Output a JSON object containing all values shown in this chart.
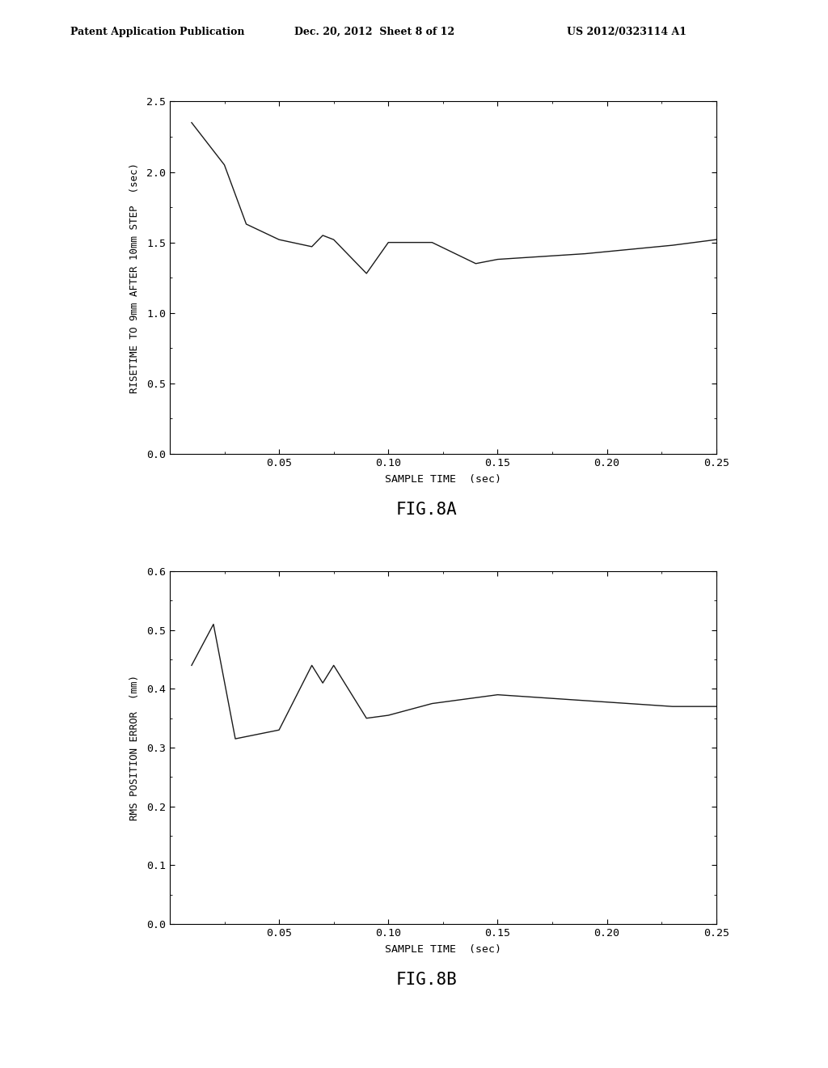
{
  "fig8a": {
    "x": [
      0.01,
      0.025,
      0.035,
      0.05,
      0.065,
      0.07,
      0.075,
      0.09,
      0.1,
      0.12,
      0.14,
      0.15,
      0.17,
      0.19,
      0.21,
      0.23,
      0.25
    ],
    "y": [
      2.35,
      2.05,
      1.63,
      1.52,
      1.47,
      1.55,
      1.52,
      1.28,
      1.5,
      1.5,
      1.35,
      1.38,
      1.4,
      1.42,
      1.45,
      1.48,
      1.52
    ],
    "xlabel": "SAMPLE TIME  (sec)",
    "ylabel": "RISETIME TO 9mm AFTER 10mm STEP  (sec)",
    "xlim": [
      0.0,
      0.25
    ],
    "ylim": [
      0.0,
      2.5
    ],
    "xticks": [
      0.05,
      0.1,
      0.15,
      0.2,
      0.25
    ],
    "yticks": [
      0.0,
      0.5,
      1.0,
      1.5,
      2.0,
      2.5
    ],
    "fig_label": "FIG.8A"
  },
  "fig8b": {
    "x": [
      0.01,
      0.02,
      0.03,
      0.05,
      0.065,
      0.07,
      0.075,
      0.09,
      0.1,
      0.12,
      0.14,
      0.15,
      0.17,
      0.19,
      0.21,
      0.23,
      0.25
    ],
    "y": [
      0.44,
      0.51,
      0.315,
      0.33,
      0.44,
      0.41,
      0.44,
      0.35,
      0.355,
      0.375,
      0.385,
      0.39,
      0.385,
      0.38,
      0.375,
      0.37,
      0.37
    ],
    "xlabel": "SAMPLE TIME  (sec)",
    "ylabel": "RMS POSITION ERROR  (mm)",
    "xlim": [
      0.0,
      0.25
    ],
    "ylim": [
      0.0,
      0.6
    ],
    "xticks": [
      0.05,
      0.1,
      0.15,
      0.2,
      0.25
    ],
    "yticks": [
      0.0,
      0.1,
      0.2,
      0.3,
      0.4,
      0.5,
      0.6
    ],
    "fig_label": "FIG.8B"
  },
  "header_left": "Patent Application Publication",
  "header_mid": "Dec. 20, 2012  Sheet 8 of 12",
  "header_right": "US 2012/0323114 A1",
  "bg_color": "#ffffff",
  "line_color": "#1a1a1a",
  "title_fontsize": 15,
  "label_fontsize": 9.5,
  "tick_fontsize": 9.5,
  "header_fontsize": 9
}
